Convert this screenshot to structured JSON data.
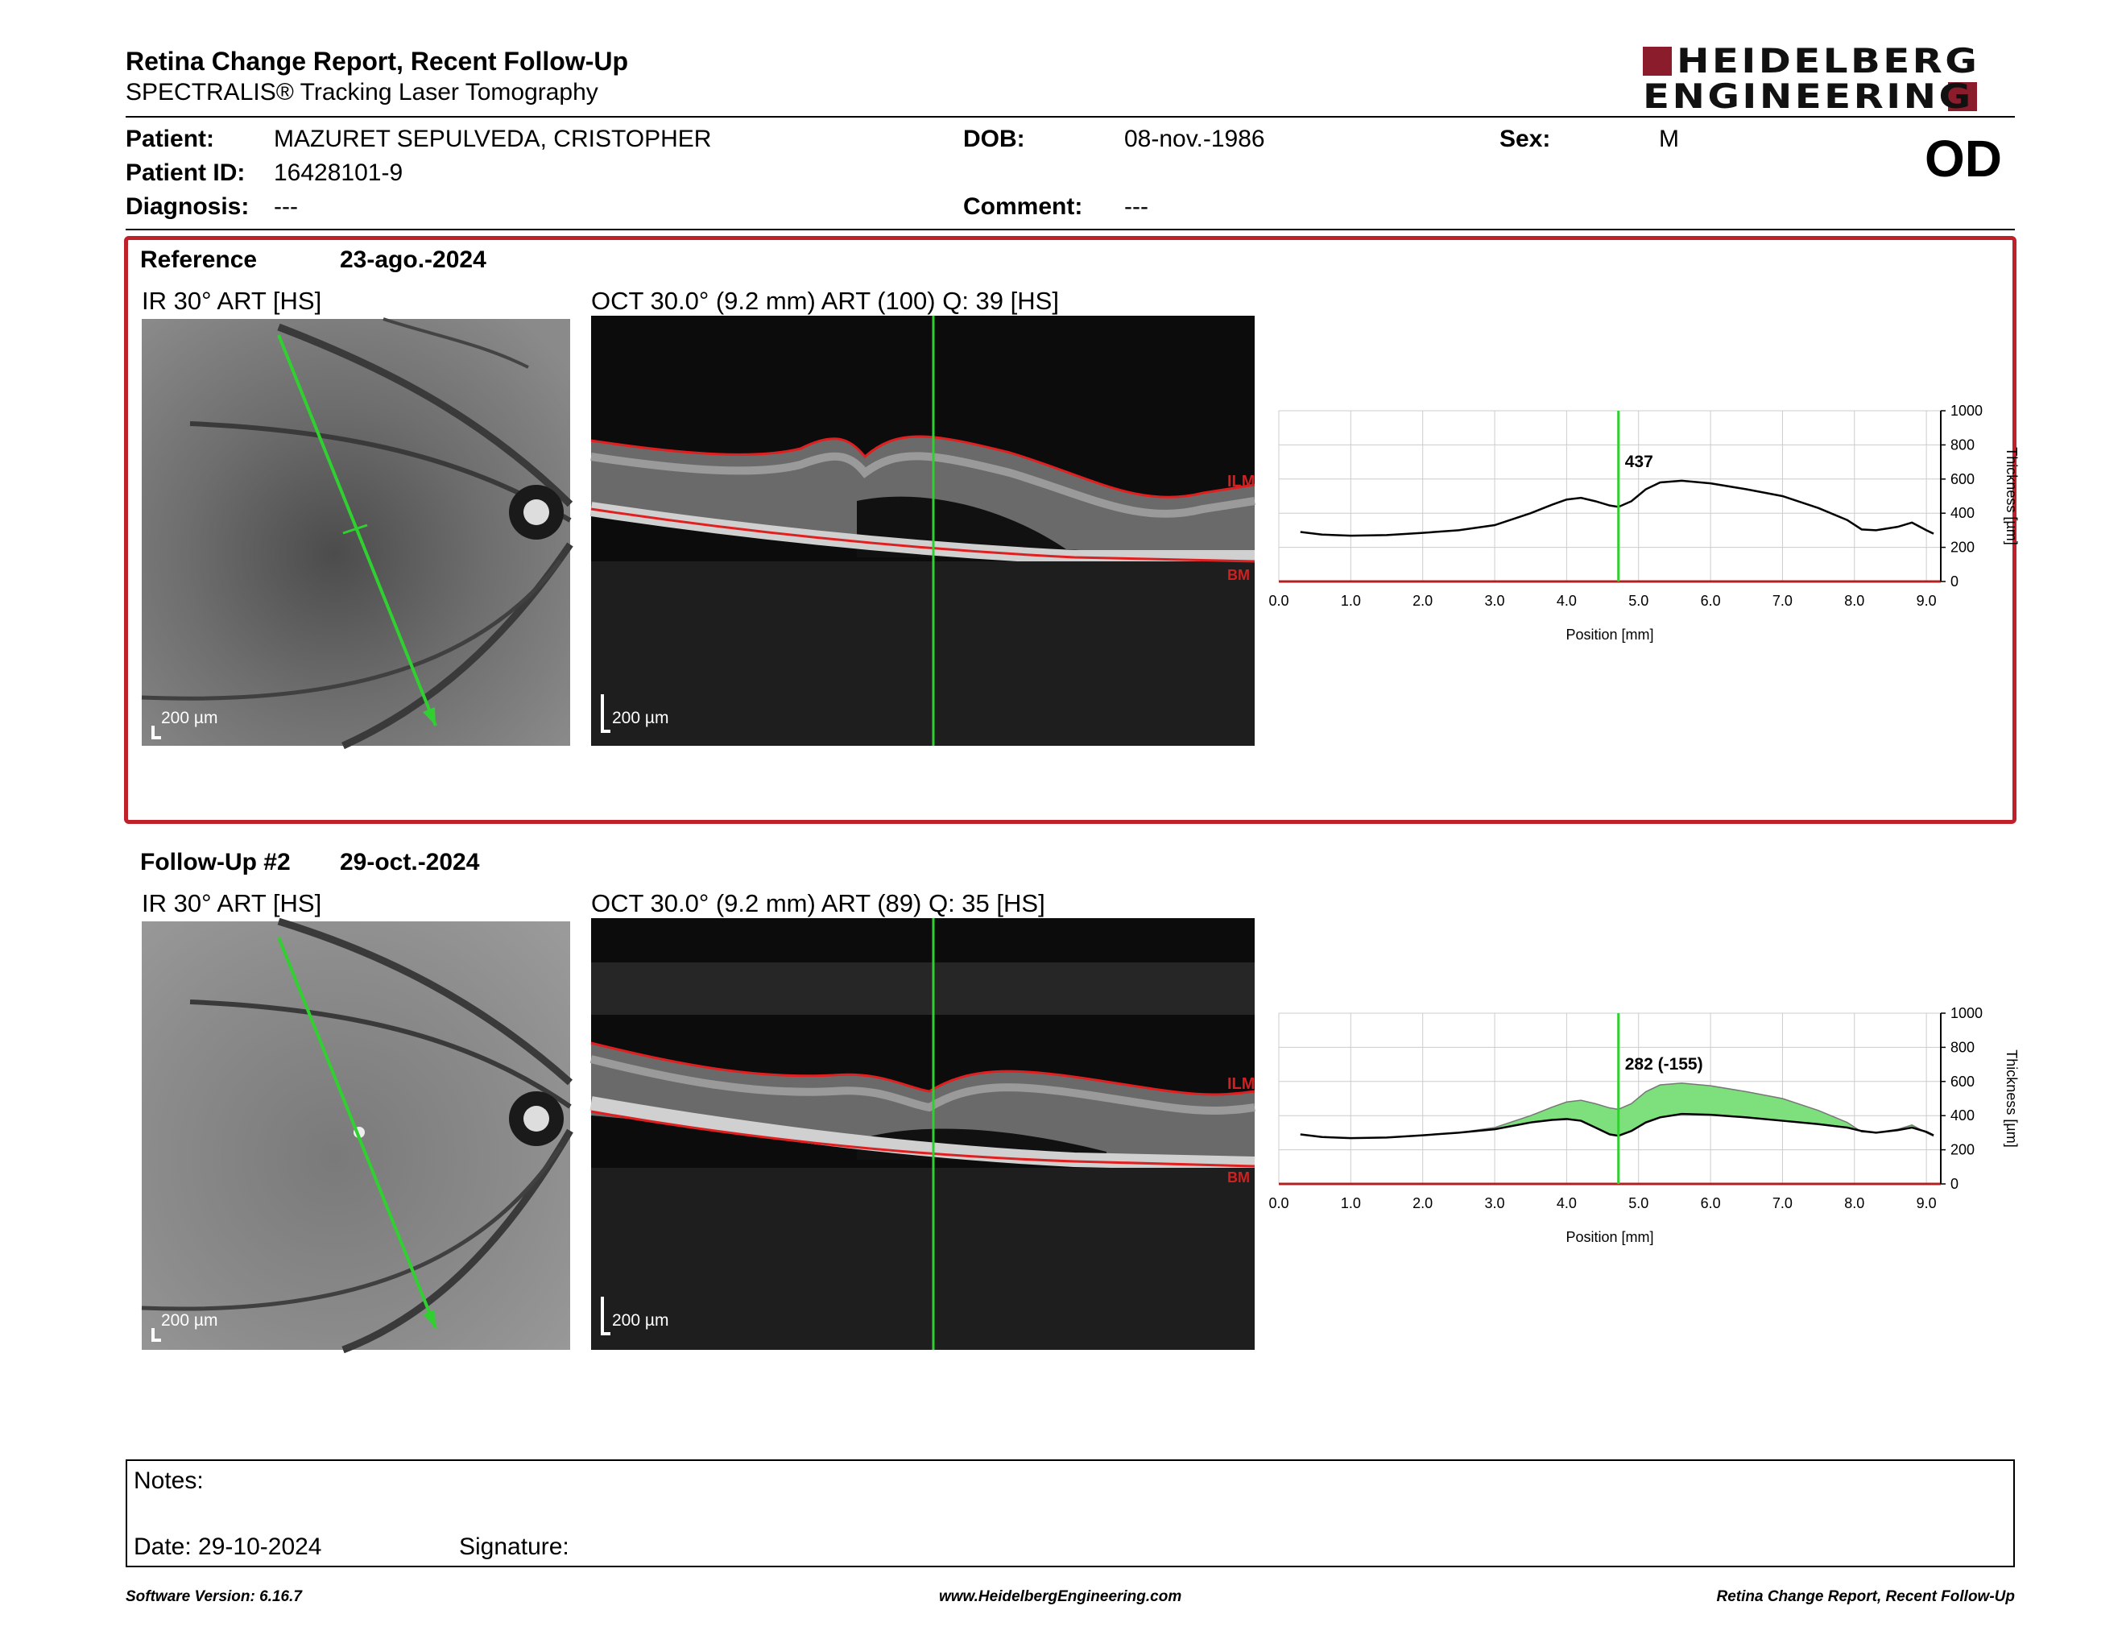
{
  "report": {
    "title": "Retina Change Report, Recent Follow-Up",
    "subtitle": "SPECTRALIS® Tracking Laser Tomography",
    "eye": "OD"
  },
  "brand": {
    "line1": "HEIDELBERG",
    "line2": "ENGINEERING",
    "color": "#8a1c2b"
  },
  "patient": {
    "name_label": "Patient:",
    "name": "MAZURET SEPULVEDA, CRISTOPHER",
    "id_label": "Patient ID:",
    "id": "16428101-9",
    "diagnosis_label": "Diagnosis:",
    "diagnosis": "---",
    "dob_label": "DOB:",
    "dob": "08-nov.-1986",
    "comment_label": "Comment:",
    "comment": "---",
    "sex_label": "Sex:",
    "sex": "M"
  },
  "reference": {
    "label": "Reference",
    "date": "23-ago.-2024",
    "ir_caption": "IR 30° ART [HS]",
    "oct_caption": "OCT 30.0° (9.2 mm) ART (100) Q: 39 [HS]",
    "ir_scale": "200 µm",
    "oct_scale": "200 µm",
    "ilm": "ILM",
    "bm": "BM",
    "frame_color": "#c0202a"
  },
  "followup": {
    "label": "Follow-Up #2",
    "date": "29-oct.-2024",
    "ir_caption": "IR 30° ART [HS]",
    "oct_caption": "OCT 30.0° (9.2 mm) ART (89) Q: 35 [HS]",
    "ir_scale": "200 µm",
    "oct_scale": "200 µm",
    "ilm": "ILM",
    "bm": "BM"
  },
  "chart_data": [
    {
      "type": "line",
      "xlabel": "Position [mm]",
      "ylabel": "Thickness [µm]",
      "xlim": [
        0,
        9.2
      ],
      "ylim": [
        0,
        1000
      ],
      "x_ticks": [
        "0.0",
        "1.0",
        "2.0",
        "3.0",
        "4.0",
        "5.0",
        "6.0",
        "7.0",
        "8.0",
        "9.0"
      ],
      "y_ticks": [
        "0",
        "200",
        "400",
        "600",
        "800",
        "1000"
      ],
      "grid": true,
      "marker_x": 4.72,
      "marker_label": "437",
      "series": [
        {
          "x": [
            0.3,
            0.6,
            1.0,
            1.5,
            2.0,
            2.5,
            3.0,
            3.5,
            3.8,
            4.0,
            4.2,
            4.4,
            4.6,
            4.72,
            4.9,
            5.1,
            5.3,
            5.6,
            6.0,
            6.5,
            7.0,
            7.5,
            7.9,
            8.1,
            8.3,
            8.6,
            8.8,
            9.0,
            9.1
          ],
          "y": [
            290,
            275,
            268,
            272,
            285,
            300,
            330,
            400,
            450,
            480,
            490,
            470,
            445,
            437,
            470,
            540,
            580,
            590,
            575,
            540,
            500,
            430,
            360,
            305,
            300,
            320,
            345,
            300,
            280
          ]
        }
      ]
    },
    {
      "type": "area",
      "xlabel": "Position [mm]",
      "ylabel": "Thickness [µm]",
      "xlim": [
        0,
        9.2
      ],
      "ylim": [
        0,
        1000
      ],
      "x_ticks": [
        "0.0",
        "1.0",
        "2.0",
        "3.0",
        "4.0",
        "5.0",
        "6.0",
        "7.0",
        "8.0",
        "9.0"
      ],
      "y_ticks": [
        "0",
        "200",
        "400",
        "600",
        "800",
        "1000"
      ],
      "grid": true,
      "marker_x": 4.72,
      "marker_label": "282 (-155)",
      "fill_color": "#7de07d",
      "series": [
        {
          "x": [
            0.3,
            0.6,
            1.0,
            1.5,
            2.0,
            2.5,
            3.0,
            3.5,
            3.8,
            4.0,
            4.2,
            4.4,
            4.6,
            4.72,
            4.9,
            5.1,
            5.3,
            5.6,
            6.0,
            6.5,
            7.0,
            7.5,
            7.9,
            8.1,
            8.3,
            8.6,
            8.8,
            9.0,
            9.1
          ],
          "y": [
            290,
            275,
            268,
            272,
            285,
            300,
            320,
            360,
            375,
            380,
            370,
            330,
            290,
            282,
            310,
            360,
            390,
            410,
            405,
            390,
            370,
            350,
            330,
            310,
            300,
            315,
            330,
            305,
            285
          ]
        },
        {
          "x": [
            0.3,
            0.6,
            1.0,
            1.5,
            2.0,
            2.5,
            3.0,
            3.5,
            3.8,
            4.0,
            4.2,
            4.4,
            4.6,
            4.72,
            4.9,
            5.1,
            5.3,
            5.6,
            6.0,
            6.5,
            7.0,
            7.5,
            7.9,
            8.1,
            8.3,
            8.6,
            8.8,
            9.0,
            9.1
          ],
          "y": [
            290,
            275,
            268,
            272,
            285,
            300,
            330,
            400,
            450,
            480,
            490,
            470,
            445,
            437,
            470,
            540,
            580,
            590,
            575,
            540,
            500,
            430,
            360,
            305,
            300,
            320,
            345,
            300,
            280
          ]
        }
      ]
    }
  ],
  "notes": {
    "notes_label": "Notes:",
    "date_label": "Date: 29-10-2024",
    "signature_label": "Signature:"
  },
  "footer": {
    "left": "Software Version: 6.16.7",
    "center": "www.HeidelbergEngineering.com",
    "right": "Retina Change Report, Recent Follow-Up"
  }
}
